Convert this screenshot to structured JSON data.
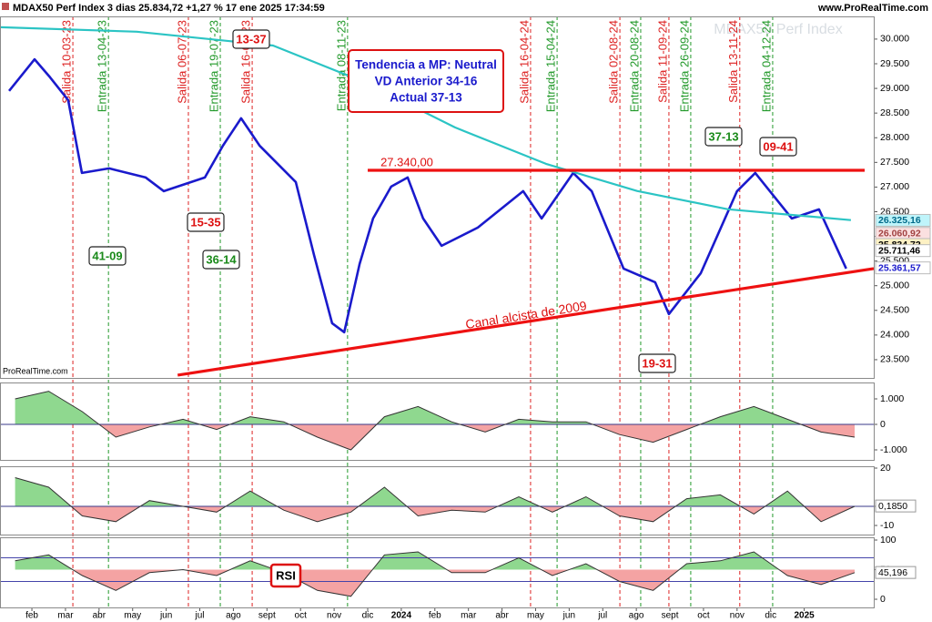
{
  "header": {
    "title": "MDAX50 Perf Index 3 dias 25.834,72 +1,27 % 17 ene 2025 17:34:59",
    "site": "www.ProRealTime.com",
    "watermark": "MDAX50 Perf Index",
    "footer_mark": "ProRealTime.com"
  },
  "chart_data": [
    {
      "type": "line",
      "xlim": [
        0.05,
        26.07
      ],
      "xticks": [
        {
          "value": 1,
          "label": "feb"
        },
        {
          "value": 2,
          "label": "mar"
        },
        {
          "value": 3,
          "label": "abr"
        },
        {
          "value": 4,
          "label": "may"
        },
        {
          "value": 5,
          "label": "jun"
        },
        {
          "value": 6,
          "label": "jul"
        },
        {
          "value": 7,
          "label": "ago"
        },
        {
          "value": 8,
          "label": "sept"
        },
        {
          "value": 9,
          "label": "oct"
        },
        {
          "value": 10,
          "label": "nov"
        },
        {
          "value": 11,
          "label": "dic"
        },
        {
          "value": 12,
          "label": "2024"
        },
        {
          "value": 13,
          "label": "feb"
        },
        {
          "value": 14,
          "label": "mar"
        },
        {
          "value": 15,
          "label": "abr"
        },
        {
          "value": 16,
          "label": "may"
        },
        {
          "value": 17,
          "label": "jun"
        },
        {
          "value": 18,
          "label": "jul"
        },
        {
          "value": 19,
          "label": "ago"
        },
        {
          "value": 20,
          "label": "sept"
        },
        {
          "value": 21,
          "label": "oct"
        },
        {
          "value": 22,
          "label": "nov"
        },
        {
          "value": 23,
          "label": "dic"
        },
        {
          "value": 24,
          "label": "2025"
        }
      ],
      "ylim": [
        23130,
        30460
      ],
      "yticks": [
        {
          "value": 23500,
          "label": "23.500"
        },
        {
          "value": 24000,
          "label": "24.000"
        },
        {
          "value": 24500,
          "label": "24.500"
        },
        {
          "value": 25000,
          "label": "25.000"
        },
        {
          "value": 25500,
          "label": "25.500"
        },
        {
          "value": 26000,
          "label": "26.000"
        },
        {
          "value": 26500,
          "label": "26.500"
        },
        {
          "value": 27000,
          "label": "27.000"
        },
        {
          "value": 27500,
          "label": "27.500"
        },
        {
          "value": 28000,
          "label": "28.000"
        },
        {
          "value": 28500,
          "label": "28.500"
        },
        {
          "value": 29000,
          "label": "29.000"
        },
        {
          "value": 29500,
          "label": "29.500"
        },
        {
          "value": 30000,
          "label": "30.000"
        }
      ],
      "series": [
        {
          "color": "#1a1acc",
          "x": [
            0.32,
            1.08,
            1.54,
            2.08,
            2.49,
            3.3,
            4.39,
            4.93,
            6.15,
            6.69,
            7.23,
            7.78,
            8.86,
            9.4,
            9.94,
            10.3,
            10.76,
            11.16,
            11.7,
            12.19,
            12.65,
            13.2,
            14.28,
            15.63,
            16.18,
            17.12,
            17.67,
            18.62,
            19.56,
            19.97,
            20.92,
            22.0,
            22.54,
            23.63,
            24.44,
            25.25
          ],
          "values": [
            28950,
            29590,
            29225,
            28763,
            27286,
            27379,
            27194,
            26917,
            27194,
            27840,
            28394,
            27840,
            27102,
            25625,
            24240,
            24056,
            25440,
            26363,
            27009,
            27194,
            26363,
            25809,
            26179,
            26917,
            26363,
            27286,
            26917,
            25348,
            25071,
            24425,
            25256,
            26917,
            27286,
            26363,
            26548,
            25348
          ]
        },
        {
          "color": "#2bc4c4",
          "x": [
            0.05,
            4.12,
            8.18,
            10.89,
            13.6,
            16.31,
            19.02,
            21.73,
            25.39
          ],
          "values": [
            30240,
            30150,
            29870,
            29130,
            28210,
            27470,
            26920,
            26550,
            26330
          ]
        },
        {
          "color": "#ee1111",
          "x": [
            11.0,
            25.8
          ],
          "values": [
            27340,
            27340
          ]
        },
        {
          "color": "#ee1111",
          "x": [
            5.34,
            26.07
          ],
          "values": [
            23188,
            25348
          ]
        }
      ],
      "price_labels": [
        {
          "label": "26.325,16",
          "value": 26325.16,
          "color": "#006a8a",
          "fill": "#bff4fa"
        },
        {
          "label": "26.060,92",
          "value": 26060.92,
          "color": "#a04040",
          "fill": "#fbe0e0"
        },
        {
          "label": "25.834,72",
          "value": 25834.72,
          "color": "#000000",
          "fill": "#fdf1c4"
        },
        {
          "label": "25.711,46",
          "value": 25711.46,
          "color": "#000000",
          "fill": "#ffffff"
        },
        {
          "label": "25.361,57",
          "value": 25361.57,
          "color": "#1a1acc",
          "fill": "#ffffff"
        }
      ],
      "signals": [
        {
          "label": "Salida 10-03-23",
          "x": 2.22,
          "color": "#dd2222"
        },
        {
          "label": "Entrada 13-04-23",
          "x": 3.28,
          "color": "#22992a"
        },
        {
          "label": "Salida 06-07-23",
          "x": 5.66,
          "color": "#dd2222"
        },
        {
          "label": "Entrada 19-07-23",
          "x": 6.61,
          "color": "#22992a"
        },
        {
          "label": "Salida 16-08-23",
          "x": 7.56,
          "color": "#dd2222"
        },
        {
          "label": "Entrada 08-11-23",
          "x": 10.4,
          "color": "#22992a"
        },
        {
          "label": "Salida 16-04-24",
          "x": 15.85,
          "color": "#dd2222"
        },
        {
          "label": "Entrada 15-04-24",
          "x": 16.64,
          "color": "#22992a"
        },
        {
          "label": "Salida 02-08-24",
          "x": 18.51,
          "color": "#dd2222"
        },
        {
          "label": "Entrada 20-08-24",
          "x": 19.13,
          "color": "#22992a"
        },
        {
          "label": "Salida 11-09-24",
          "x": 19.97,
          "color": "#dd2222"
        },
        {
          "label": "Entrada 26-09-24",
          "x": 20.62,
          "color": "#22992a"
        },
        {
          "label": "Salida 13-11-24",
          "x": 22.08,
          "color": "#dd2222"
        },
        {
          "label": "Entrada 04-12-24",
          "x": 23.06,
          "color": "#22992a"
        }
      ],
      "annotations": [
        {
          "text": "13-37",
          "color": "#dd1111"
        },
        {
          "text": "15-35",
          "color": "#dd1111"
        },
        {
          "text": "36-14",
          "color": "#1a8a1a"
        },
        {
          "text": "41-09",
          "color": "#1a8a1a"
        },
        {
          "text": "37-13",
          "color": "#1a8a1a"
        },
        {
          "text": "09-41",
          "color": "#dd1111"
        },
        {
          "text": "19-31",
          "color": "#dd1111"
        },
        {
          "text": "27.340,00",
          "color": "#dd1111"
        },
        {
          "text": "Canal alcista de 2009",
          "color": "#dd1111"
        }
      ],
      "info_box": [
        "Tendencia a MP: Neutral",
        "VD Anterior 34-16",
        "Actual 37-13"
      ]
    },
    {
      "type": "area",
      "baseline": 0,
      "ylim": [
        -1393,
        1643
      ],
      "yticks": [
        {
          "value": 1000,
          "label": "1.000"
        },
        0,
        {
          "value": -1000,
          "label": "-1.000"
        }
      ],
      "x": [
        0.5,
        1.5,
        2.5,
        3.5,
        4.5,
        5.5,
        6.5,
        7.5,
        8.5,
        9.5,
        10.5,
        11.5,
        12.5,
        13.5,
        14.5,
        15.5,
        16.5,
        17.5,
        18.5,
        19.5,
        20.5,
        21.5,
        22.5,
        23.5,
        24.5,
        25.5
      ],
      "values": [
        1000,
        1300,
        500,
        -500,
        -100,
        200,
        -200,
        300,
        100,
        -500,
        -1000,
        300,
        700,
        100,
        -300,
        200,
        100,
        100,
        -400,
        -700,
        -200,
        300,
        700,
        200,
        -300,
        -500
      ]
    },
    {
      "type": "area",
      "baseline": 0,
      "ylim": [
        -14.76,
        20.95
      ],
      "yticks": [
        20,
        0,
        -10
      ],
      "x": [
        0.5,
        1.5,
        2.5,
        3.5,
        4.5,
        5.5,
        6.5,
        7.5,
        8.5,
        9.5,
        10.5,
        11.5,
        12.5,
        13.5,
        14.5,
        15.5,
        16.5,
        17.5,
        18.5,
        19.5,
        20.5,
        21.5,
        22.5,
        23.5,
        24.5,
        25.5
      ],
      "values": [
        15,
        10,
        -5,
        -8,
        3,
        0,
        -3,
        8,
        -2,
        -8,
        -3,
        10,
        -5,
        -2,
        -3,
        5,
        -3,
        5,
        -5,
        -8,
        4,
        6,
        -4,
        8,
        -8,
        0
      ],
      "last": {
        "value": 0.185,
        "label": "0,1850"
      }
    },
    {
      "type": "area",
      "baseline": 50,
      "ylim": [
        -13.8,
        104.6
      ],
      "yticks": [
        100,
        50,
        0
      ],
      "hlines": [
        70,
        30
      ],
      "x": [
        0.5,
        1.5,
        2.5,
        3.5,
        4.5,
        5.5,
        6.5,
        7.5,
        8.5,
        9.5,
        10.5,
        11.5,
        12.5,
        13.5,
        14.5,
        15.5,
        16.5,
        17.5,
        18.5,
        19.5,
        20.5,
        21.5,
        22.5,
        23.5,
        24.5,
        25.5
      ],
      "values": [
        65,
        75,
        40,
        15,
        45,
        50,
        40,
        65,
        45,
        15,
        5,
        75,
        80,
        45,
        45,
        70,
        40,
        60,
        30,
        15,
        60,
        65,
        80,
        40,
        25,
        45
      ],
      "last": {
        "value": 45.196,
        "label": "45,196"
      },
      "annotations": [
        {
          "text": "RSI",
          "color": "#000000"
        }
      ]
    }
  ]
}
